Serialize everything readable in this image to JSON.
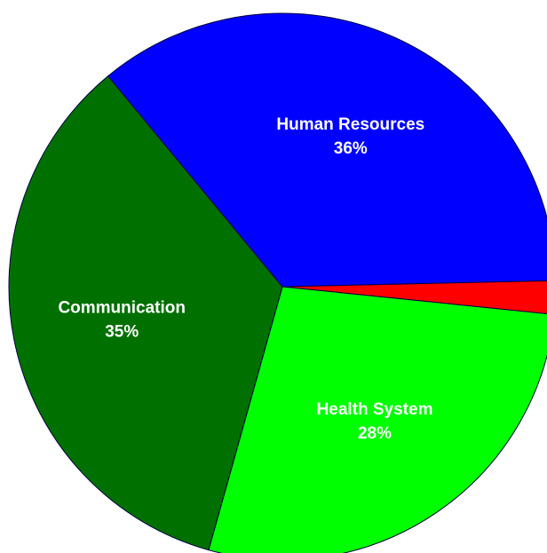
{
  "chart_data": {
    "type": "pie",
    "categories": [
      "Human Resources",
      null,
      "Health System",
      "Communication"
    ],
    "values": [
      36,
      2,
      28,
      35
    ],
    "value_labels": [
      "36%",
      null,
      "28%",
      "35%"
    ],
    "colors": [
      "#0000ff",
      "#ff0000",
      "#00ff00",
      "#007000"
    ]
  }
}
